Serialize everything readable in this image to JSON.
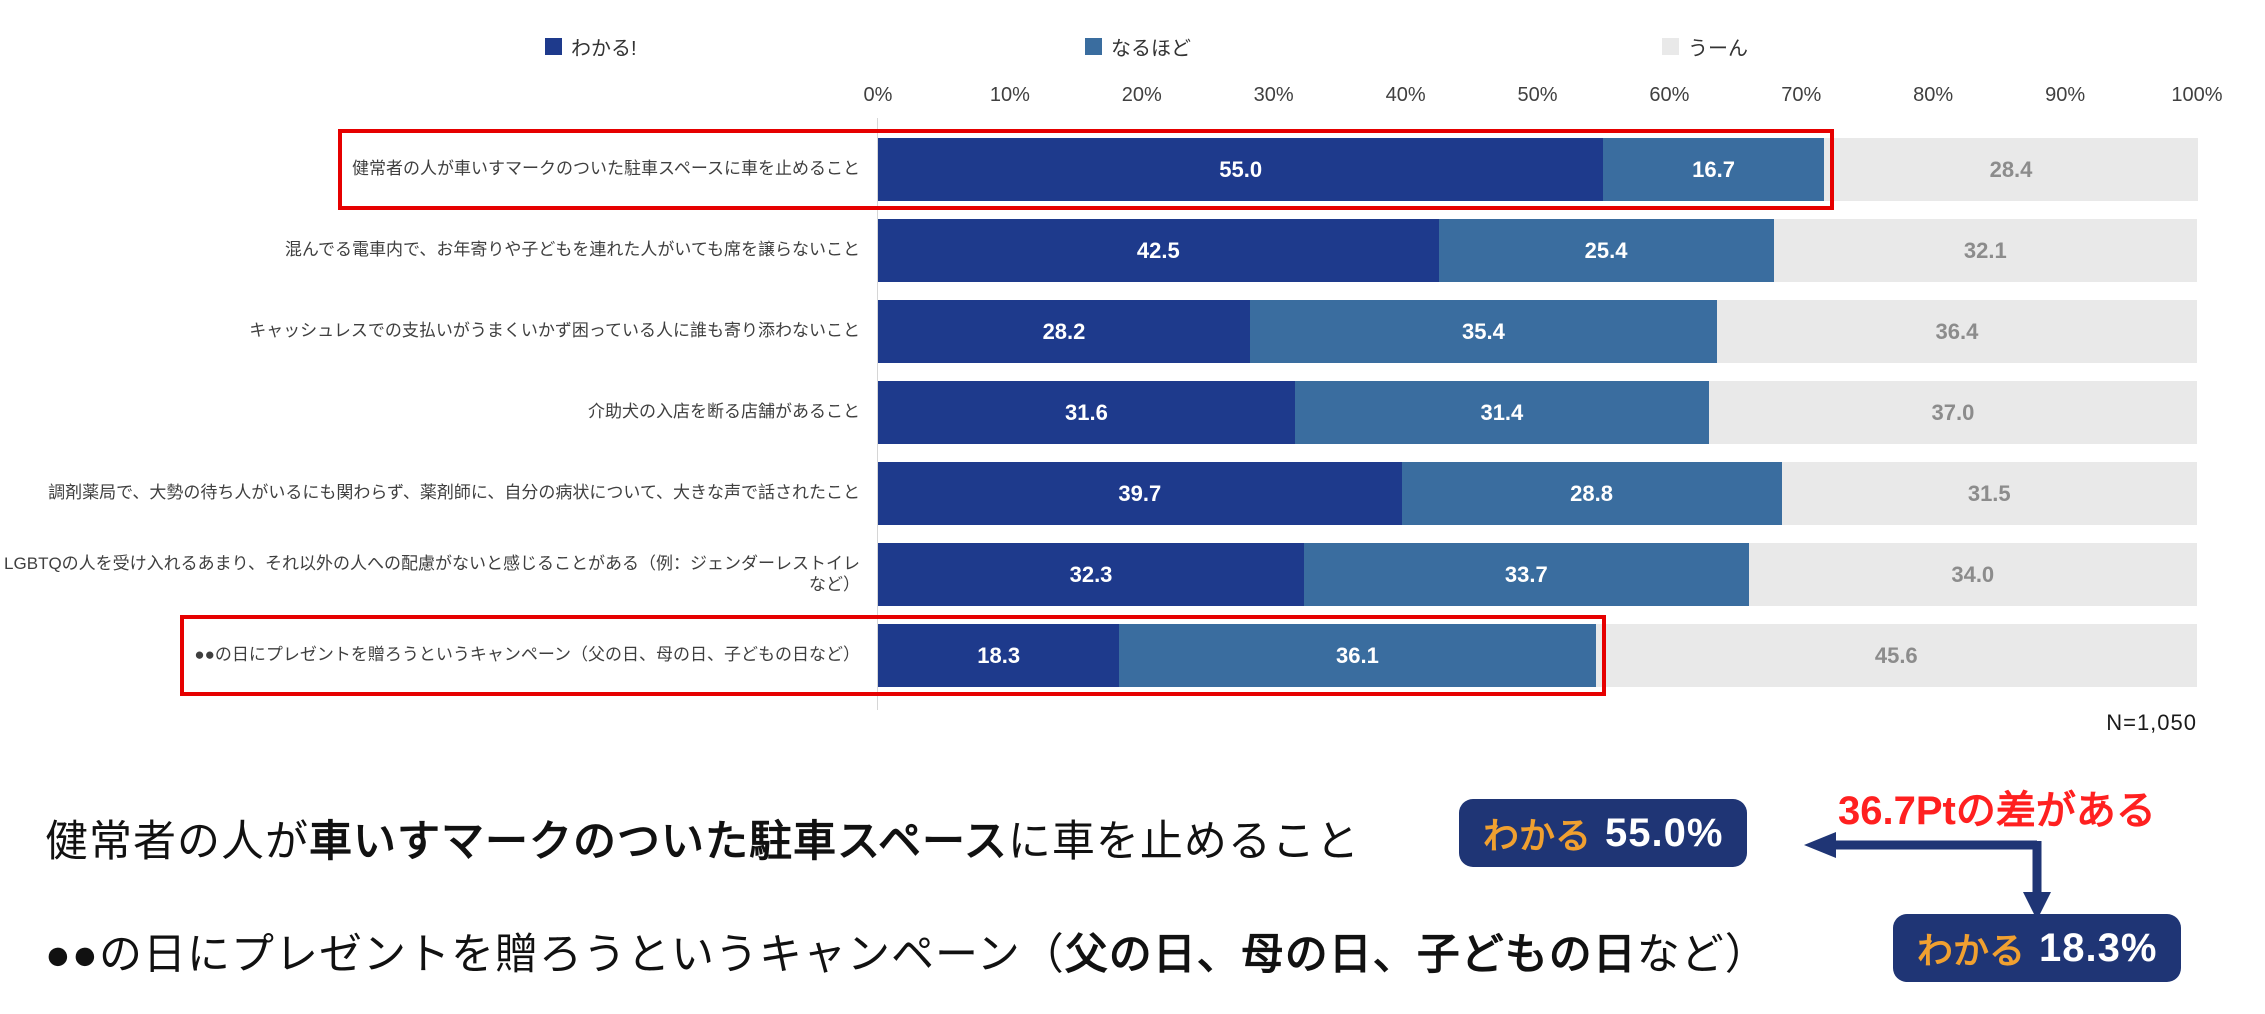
{
  "chart_data": {
    "type": "bar",
    "variant": "horizontal-stacked",
    "legend_position": "top",
    "axis_ticks": [
      "0%",
      "10%",
      "20%",
      "30%",
      "40%",
      "50%",
      "60%",
      "70%",
      "80%",
      "90%",
      "100%"
    ],
    "xlim": [
      0,
      100
    ],
    "categories": [
      "健常者の人が車いすマークのついた駐車スペースに車を止めること",
      "混んでる電車内で、お年寄りや子どもを連れた人がいても席を譲らないこと",
      "キャッシュレスでの支払いがうまくいかず困っている人に誰も寄り添わないこと",
      "介助犬の入店を断る店舗があること",
      "調剤薬局で、大勢の待ち人がいるにも関わらず、薬剤師に、自分の病状について、大きな声で話されたこと",
      "LGBTQの人を受け入れるあまり、それ以外の人への配慮がないと感じることがある（例：ジェンダーレストイレなど）",
      "●●の日にプレゼントを贈ろうというキャンペーン（父の日、母の日、子どもの日など）"
    ],
    "series": [
      {
        "name": "わかる!",
        "color": "#1E3A8C",
        "text_color": "#FFFFFF",
        "values": [
          55.0,
          42.5,
          28.2,
          31.6,
          39.7,
          32.3,
          18.3
        ]
      },
      {
        "name": "なるほど",
        "color": "#3A6D9F",
        "text_color": "#FFFFFF",
        "values": [
          16.7,
          25.4,
          35.4,
          31.4,
          28.8,
          33.7,
          36.1
        ]
      },
      {
        "name": "うーん",
        "color": "#E9E9E9",
        "text_color": "#8C8C8C",
        "values": [
          28.4,
          32.1,
          36.4,
          37.0,
          31.5,
          34.0,
          45.6
        ]
      }
    ],
    "highlighted_rows": [
      0,
      6
    ],
    "highlight_color": "#E60000",
    "n_label": "N=1,050"
  },
  "annotation": {
    "line1_parts": [
      {
        "t": "健常者の人が",
        "b": false
      },
      {
        "t": "車いすマークのついた駐車スペース",
        "b": true
      },
      {
        "t": "に車を止めること",
        "b": false
      }
    ],
    "line2_parts": [
      {
        "t": "●●の日にプレゼントを贈ろうというキャンペーン（",
        "b": false
      },
      {
        "t": "父の日、母の日、子どもの日",
        "b": true
      },
      {
        "t": "など）",
        "b": false
      }
    ],
    "badge1": {
      "label": "わかる",
      "value": "55.0%"
    },
    "badge2": {
      "label": "わかる",
      "value": "18.3%"
    },
    "diff_label": "36.7Ptの差がある",
    "badge_bg": "#1F3575",
    "badge_label_color": "#F0A030",
    "diff_color": "#FF2020",
    "arrow_color": "#1F3575"
  }
}
